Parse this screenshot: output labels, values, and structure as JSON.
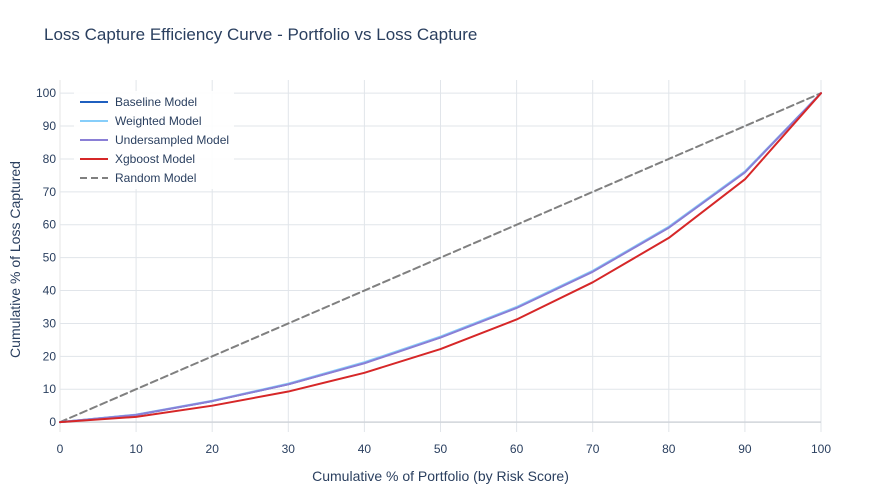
{
  "chart_data": {
    "type": "line",
    "title": "Loss Capture Efficiency Curve - Portfolio vs Loss Capture",
    "xlabel": "Cumulative % of Portfolio (by Risk Score)",
    "ylabel": "Cumulative % of Loss Captured",
    "xlim": [
      0,
      100
    ],
    "ylim": [
      -3,
      104
    ],
    "xticks": [
      0,
      10,
      20,
      30,
      40,
      50,
      60,
      70,
      80,
      90,
      100
    ],
    "yticks": [
      0,
      10,
      20,
      30,
      40,
      50,
      60,
      70,
      80,
      90,
      100
    ],
    "grid": true,
    "legend_position": "top-left",
    "x": [
      0,
      10,
      20,
      30,
      40,
      50,
      60,
      70,
      80,
      90,
      100
    ],
    "series": [
      {
        "name": "Baseline Model",
        "color": "#1f5fbf",
        "dash": "solid",
        "values": [
          0,
          2.2,
          6.4,
          11.5,
          18.0,
          25.8,
          34.8,
          45.8,
          59.2,
          76.0,
          100
        ]
      },
      {
        "name": "Weighted Model",
        "color": "#87cefa",
        "dash": "solid",
        "values": [
          0,
          2.3,
          6.5,
          11.7,
          18.2,
          26.0,
          35.0,
          46.0,
          59.4,
          76.2,
          100
        ]
      },
      {
        "name": "Undersampled Model",
        "color": "#8a7fd6",
        "dash": "solid",
        "values": [
          0,
          2.2,
          6.4,
          11.5,
          17.9,
          25.7,
          34.7,
          45.7,
          59.1,
          75.9,
          100
        ]
      },
      {
        "name": "Xgboost Model",
        "color": "#d62728",
        "dash": "solid",
        "values": [
          0,
          1.6,
          5.0,
          9.3,
          15.0,
          22.2,
          31.2,
          42.5,
          56.0,
          73.8,
          100
        ]
      },
      {
        "name": "Random Model",
        "color": "#808080",
        "dash": "dashed",
        "values": [
          0,
          10,
          20,
          30,
          40,
          50,
          60,
          70,
          80,
          90,
          100
        ]
      }
    ]
  }
}
